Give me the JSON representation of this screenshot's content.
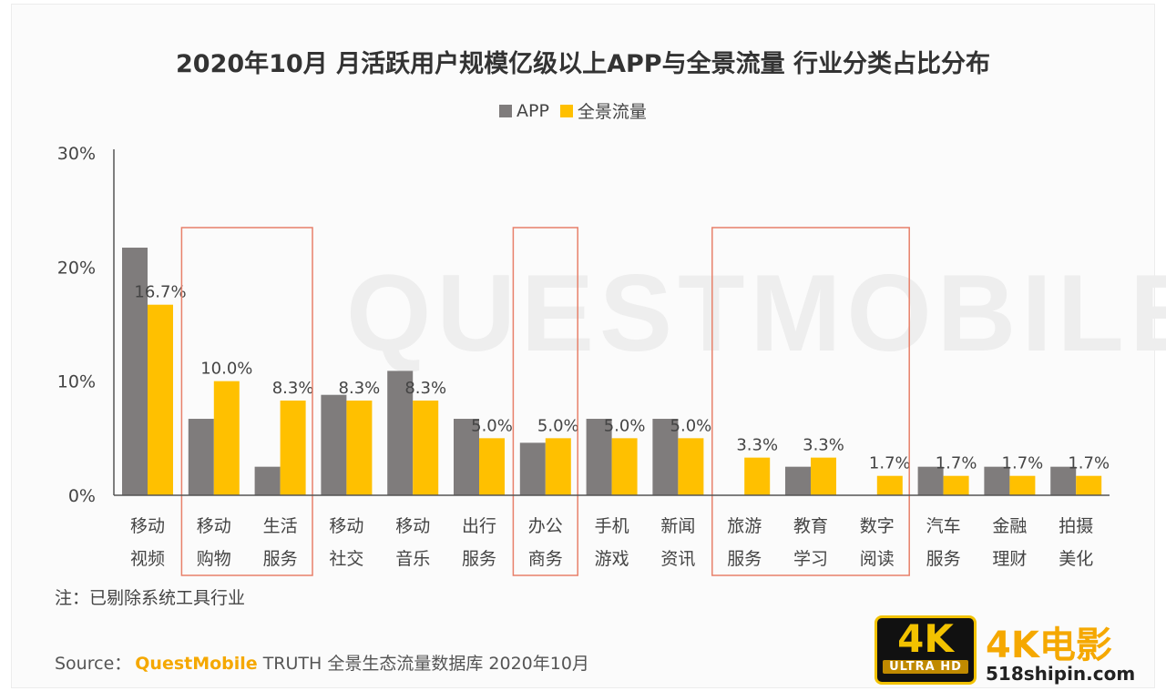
{
  "watermark": {
    "background_text": "QUESTMOBILE",
    "badge_big": "4K",
    "badge_small": "ULTRA HD",
    "name": "4K电影",
    "url": "518shipin.com"
  },
  "note": "注：已剔除系统工具行业",
  "source": {
    "prefix": "Source：",
    "brand": "QuestMobile",
    "rest": "TRUTH 全景生态流量数据库 2020年10月"
  },
  "colors": {
    "app": "#7f7c7c",
    "panorama": "#ffc000",
    "highlight_box": "#e8806a",
    "axis": "#555555"
  },
  "chart_data": {
    "type": "bar",
    "title": "2020年10月 月活跃用户规模亿级以上APP与全景流量 行业分类占比分布",
    "legend_position": "top-center",
    "grid": false,
    "ylim": [
      0,
      30
    ],
    "yticks": [
      "0%",
      "10%",
      "20%",
      "30%"
    ],
    "categories": [
      [
        "移动",
        "视频"
      ],
      [
        "移动",
        "购物"
      ],
      [
        "生活",
        "服务"
      ],
      [
        "移动",
        "社交"
      ],
      [
        "移动",
        "音乐"
      ],
      [
        "出行",
        "服务"
      ],
      [
        "办公",
        "商务"
      ],
      [
        "手机",
        "游戏"
      ],
      [
        "新闻",
        "资讯"
      ],
      [
        "旅游",
        "服务"
      ],
      [
        "教育",
        "学习"
      ],
      [
        "数字",
        "阅读"
      ],
      [
        "汽车",
        "服务"
      ],
      [
        "金融",
        "理财"
      ],
      [
        "拍摄",
        "美化"
      ]
    ],
    "series": [
      {
        "name": "APP",
        "values": [
          21.7,
          6.7,
          2.5,
          8.8,
          10.9,
          6.7,
          4.6,
          6.7,
          6.7,
          0,
          2.5,
          0,
          2.5,
          2.5,
          2.5
        ]
      },
      {
        "name": "全景流量",
        "values": [
          16.7,
          10.0,
          8.3,
          8.3,
          8.3,
          5.0,
          5.0,
          5.0,
          5.0,
          3.3,
          3.3,
          1.7,
          1.7,
          1.7,
          1.7
        ]
      }
    ],
    "data_labels": [
      "16.7%",
      "10.0%",
      "8.3%",
      "8.3%",
      "8.3%",
      "5.0%",
      "5.0%",
      "5.0%",
      "5.0%",
      "3.3%",
      "3.3%",
      "1.7%",
      "1.7%",
      "1.7%",
      "1.7%"
    ],
    "highlight_groups": [
      [
        1,
        2
      ],
      [
        6,
        6
      ],
      [
        9,
        11
      ]
    ]
  }
}
